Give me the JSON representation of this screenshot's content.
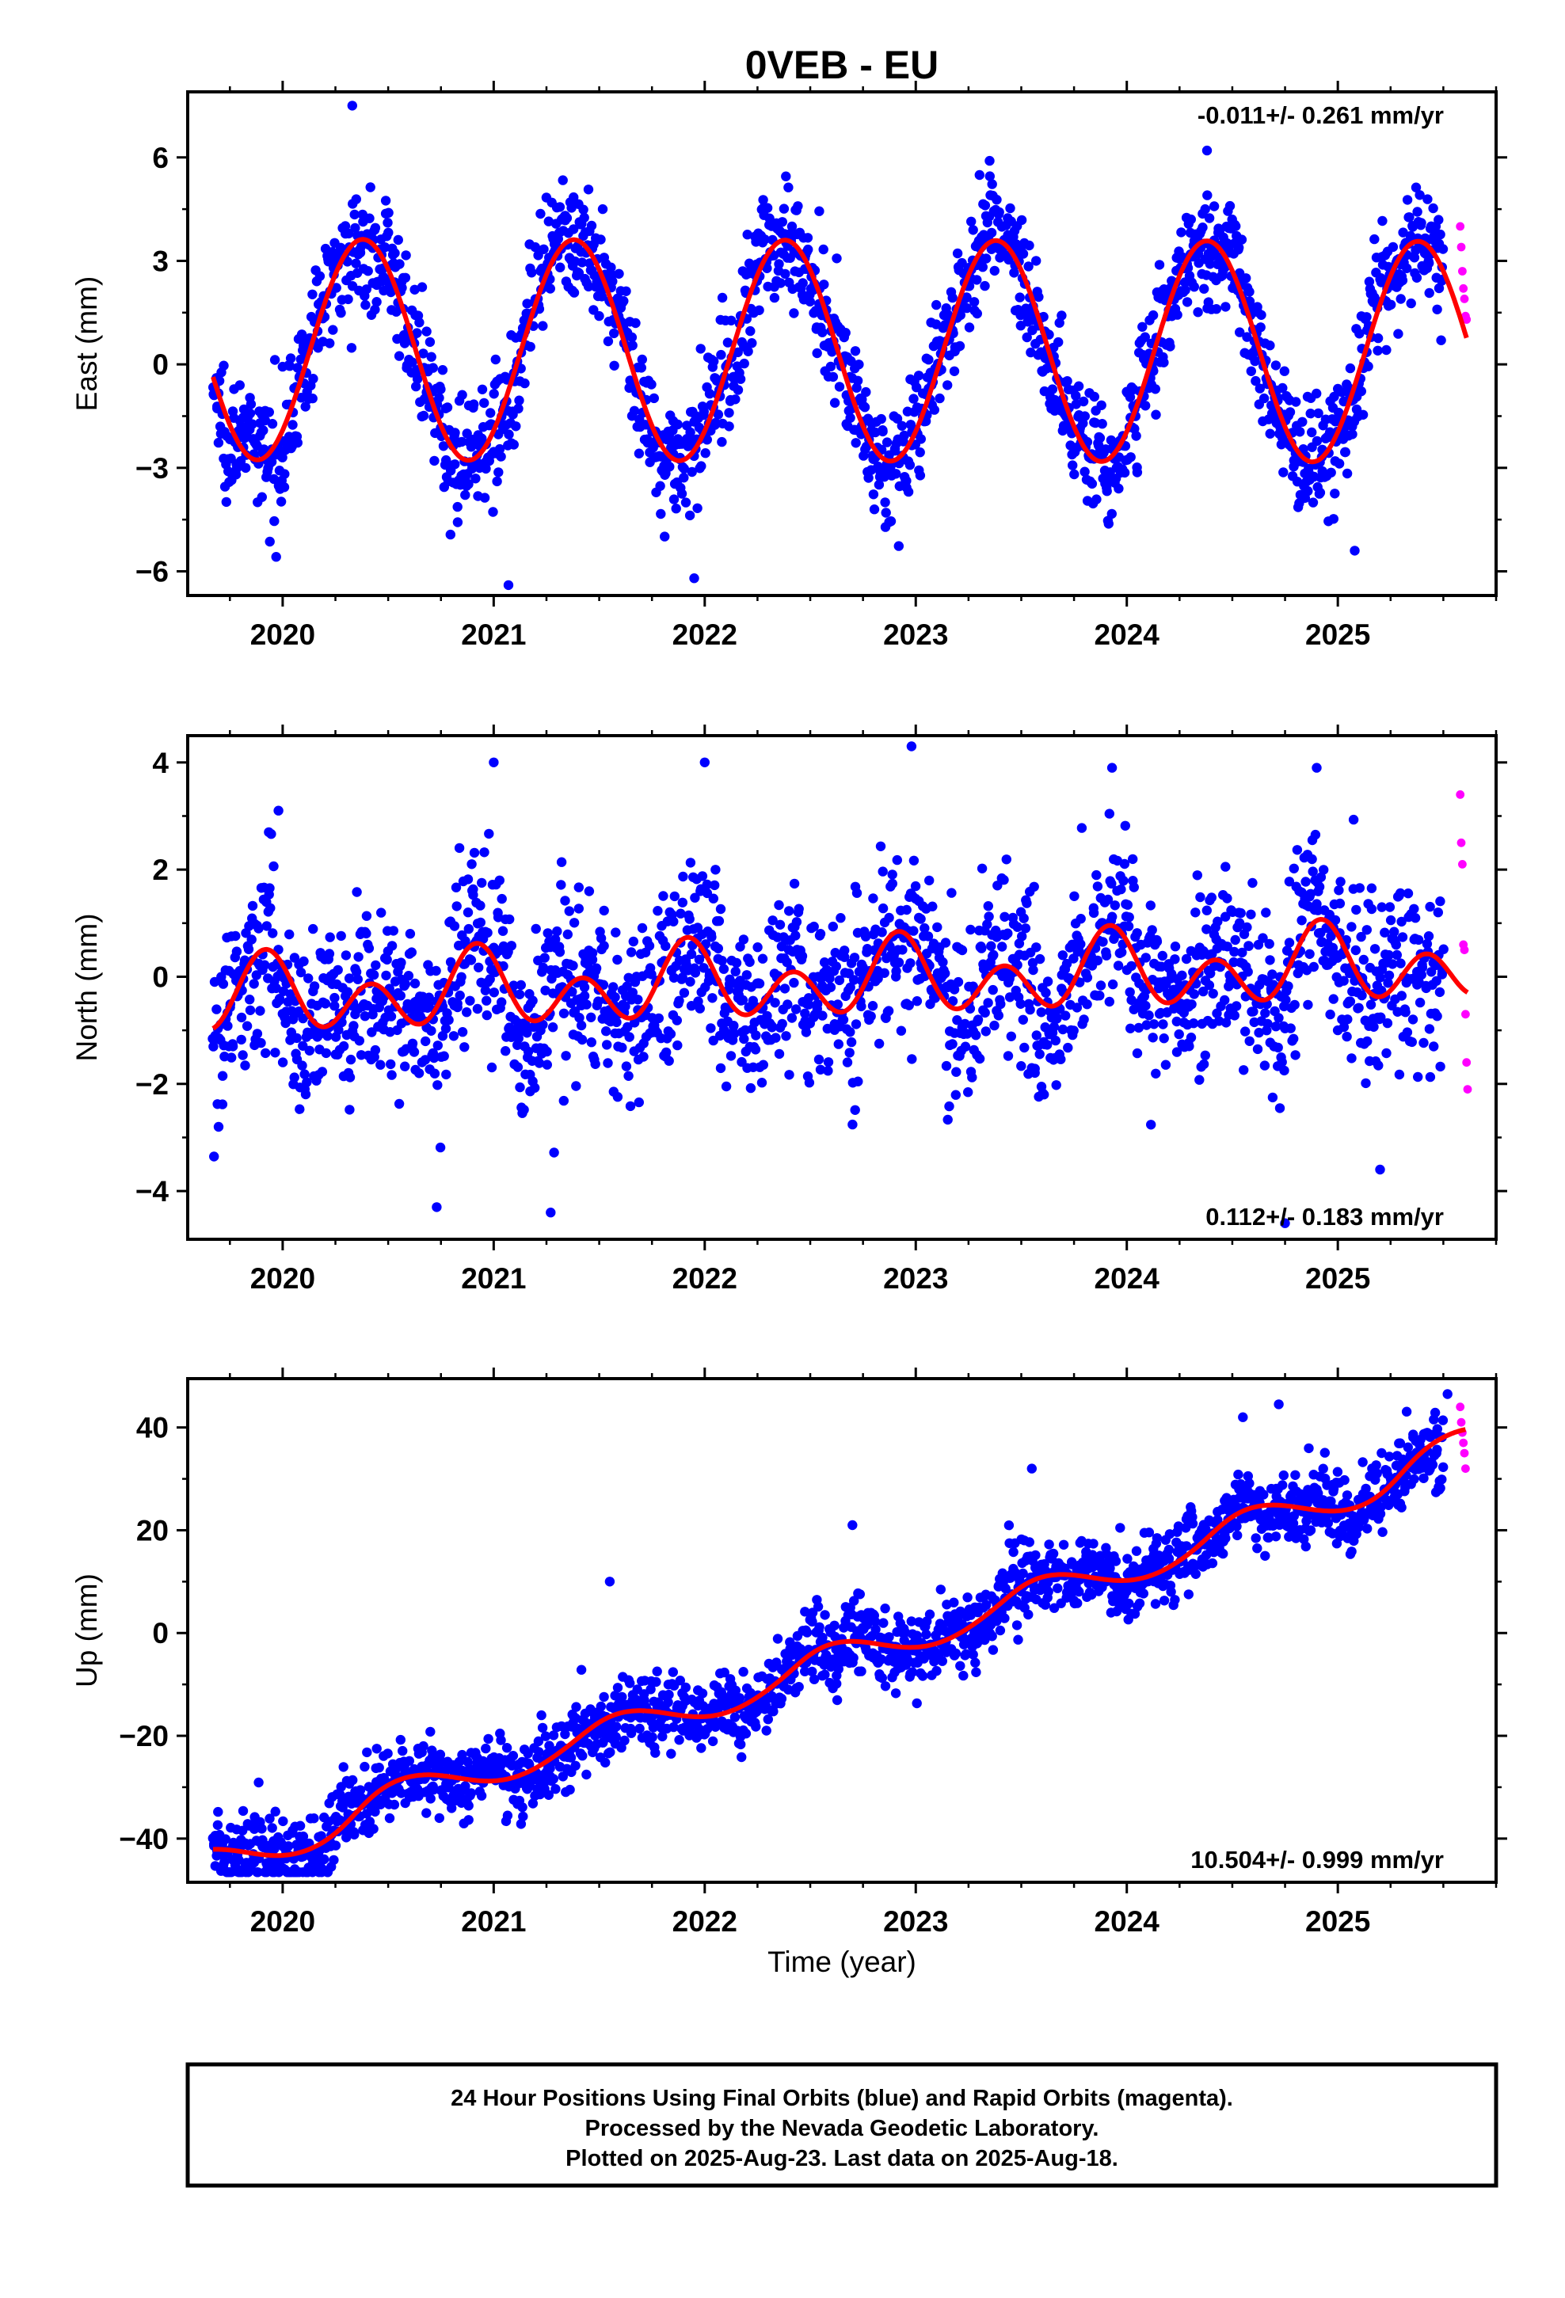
{
  "title": "0VEB - EU",
  "colors": {
    "final": "#0000ff",
    "rapid": "#ff00ff",
    "model": "#ff0000",
    "axis": "#000000"
  },
  "chart_data": [
    {
      "type": "scatter",
      "component": "east",
      "ylabel": "East (mm)",
      "xlabel": "",
      "rate_label": "-0.011+/- 0.261 mm/yr",
      "rate_position": "top-right",
      "xlim": [
        2019.55,
        2025.75
      ],
      "ylim": [
        -6.7,
        7.9
      ],
      "xticks": [
        2020,
        2021,
        2022,
        2023,
        2024,
        2025
      ],
      "xtick_labels": [
        "2020",
        "2021",
        "2022",
        "2023",
        "2024",
        "2025"
      ],
      "yticks": [
        -6,
        -3,
        0,
        3,
        6
      ],
      "ytick_labels": [
        "−6",
        "−3",
        "0",
        "3",
        "6"
      ],
      "grid": false,
      "series": [
        {
          "orbits": "final",
          "x_range": [
            2019.67,
            2025.5
          ],
          "approx_count": 1900,
          "spread_sd_mm": 1.0,
          "outliers": [
            [
              2020.33,
              7.5
            ],
            [
              2021.07,
              -6.4
            ],
            [
              2021.95,
              -6.2
            ],
            [
              2023.35,
              5.9
            ],
            [
              2024.38,
              6.2
            ],
            [
              2025.08,
              -5.4
            ]
          ]
        },
        {
          "orbits": "rapid",
          "x": [
            2025.58,
            2025.585,
            2025.59,
            2025.595,
            2025.6,
            2025.605,
            2025.61
          ],
          "y": [
            4.0,
            3.4,
            2.7,
            2.2,
            1.9,
            1.4,
            1.3
          ]
        },
        {
          "name": "",
          "kind": "model",
          "constant": 0.4,
          "trend": -0.011,
          "ref_epoch": 2022.5,
          "annual": {
            "amplitude": 3.2,
            "peak": 2020.38
          },
          "semiannual": {
            "amplitude": 0.0,
            "peak": 2020.0
          },
          "steps": []
        }
      ]
    },
    {
      "type": "scatter",
      "component": "north",
      "ylabel": "North (mm)",
      "xlabel": "",
      "rate_label": "0.112+/- 0.183 mm/yr",
      "rate_position": "bottom-right",
      "xlim": [
        2019.55,
        2025.75
      ],
      "ylim": [
        -4.9,
        4.5
      ],
      "xticks": [
        2020,
        2021,
        2022,
        2023,
        2024,
        2025
      ],
      "xtick_labels": [
        "2020",
        "2021",
        "2022",
        "2023",
        "2024",
        "2025"
      ],
      "yticks": [
        -4,
        -2,
        0,
        2,
        4
      ],
      "ytick_labels": [
        "−4",
        "−2",
        "0",
        "2",
        "4"
      ],
      "grid": false,
      "series": [
        {
          "orbits": "final",
          "x_range": [
            2019.67,
            2025.5
          ],
          "approx_count": 1900,
          "spread_sd_mm": 0.95,
          "outliers": [
            [
              2019.98,
              3.1
            ],
            [
              2021.0,
              4.0
            ],
            [
              2022.0,
              4.0
            ],
            [
              2022.98,
              4.3
            ],
            [
              2023.93,
              3.9
            ],
            [
              2024.9,
              3.9
            ],
            [
              2020.73,
              -4.3
            ],
            [
              2021.27,
              -4.4
            ],
            [
              2024.75,
              -4.6
            ],
            [
              2025.2,
              -3.6
            ]
          ]
        },
        {
          "orbits": "rapid",
          "x": [
            2025.58,
            2025.585,
            2025.59,
            2025.595,
            2025.6,
            2025.605,
            2025.61,
            2025.615
          ],
          "y": [
            3.4,
            2.5,
            2.1,
            0.6,
            0.5,
            -0.7,
            -1.6,
            -2.1
          ]
        },
        {
          "name": "",
          "kind": "model",
          "constant": -0.1,
          "trend": 0.112,
          "ref_epoch": 2022.5,
          "annual": {
            "amplitude": 0.35,
            "peak": 2019.92
          },
          "semiannual": {
            "amplitude": 0.55,
            "peak": 2019.92
          },
          "steps": []
        }
      ]
    },
    {
      "type": "scatter",
      "component": "up",
      "ylabel": "Up (mm)",
      "xlabel": "Time (year)",
      "rate_label": "10.504+/- 0.999 mm/yr",
      "rate_position": "bottom-right",
      "xlim": [
        2019.55,
        2025.75
      ],
      "ylim": [
        -48.5,
        49.5
      ],
      "xticks": [
        2020,
        2021,
        2022,
        2023,
        2024,
        2025
      ],
      "xtick_labels": [
        "2020",
        "2021",
        "2022",
        "2023",
        "2024",
        "2025"
      ],
      "yticks": [
        -40,
        -20,
        0,
        20,
        40
      ],
      "ytick_labels": [
        "−40",
        "−20",
        "0",
        "20",
        "40"
      ],
      "grid": false,
      "series": [
        {
          "orbits": "final",
          "x_range": [
            2019.67,
            2025.5
          ],
          "approx_count": 1900,
          "spread_sd_mm": 4.2,
          "outliers": [
            [
              2019.98,
              -46.5
            ],
            [
              2020.23,
              -45.5
            ],
            [
              2024.72,
              44.5
            ],
            [
              2024.55,
              42.0
            ],
            [
              2025.52,
              46.5
            ],
            [
              2021.55,
              10.0
            ],
            [
              2022.7,
              21.0
            ],
            [
              2023.55,
              32.0
            ]
          ]
        },
        {
          "orbits": "rapid",
          "x": [
            2025.58,
            2025.585,
            2025.59,
            2025.595,
            2025.6,
            2025.605
          ],
          "y": [
            44.0,
            41.0,
            39.0,
            37.0,
            35.0,
            32.0
          ]
        },
        {
          "name": "",
          "kind": "model",
          "constant": -5.15,
          "trend": 10.504,
          "ref_epoch": 2022.5,
          "annual": {
            "amplitude": 2.7,
            "peak": 2020.58
          },
          "semiannual": {
            "amplitude": 0.0,
            "peak": 2020.0
          },
          "steps": [
            [
              2020.35,
              4.0
            ],
            [
              2021.45,
              2.0
            ],
            [
              2022.45,
              3.0
            ],
            [
              2023.45,
              2.5
            ],
            [
              2024.42,
              3.0
            ],
            [
              2025.3,
              4.5
            ]
          ]
        }
      ]
    }
  ],
  "footer": {
    "line1": "24 Hour Positions Using Final Orbits (blue) and Rapid Orbits (magenta).",
    "line2": "Processed by the Nevada Geodetic Laboratory.",
    "line3": "Plotted on 2025-Aug-23. Last data on 2025-Aug-18."
  }
}
